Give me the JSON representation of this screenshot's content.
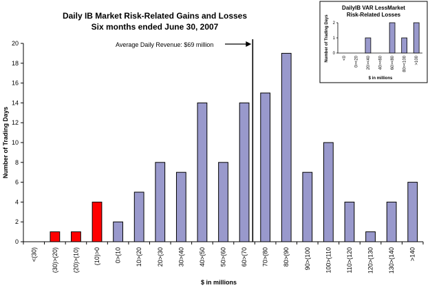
{
  "chart_data": [
    {
      "type": "bar",
      "title": "Daily IB Market Risk-Related Gains and Losses",
      "subtitle": "Six months ended June 30, 2007",
      "xlabel": "$ in millions",
      "ylabel": "Number of Trading Days",
      "ylim": [
        0,
        20
      ],
      "yticks": [
        0,
        2,
        4,
        6,
        8,
        10,
        12,
        14,
        16,
        18,
        20
      ],
      "grid": false,
      "categories": [
        "<(30)",
        "(30)>(20)",
        "(20)>(10)",
        "(10)>0",
        "0>(10",
        "10>(20",
        "20>(30",
        "30>(40",
        "40>(50",
        "50>(60",
        "60>(70",
        "70>(80",
        "80>(90",
        "90>(100",
        "100>(110",
        "110>(120",
        "120>(130",
        "130>(140",
        ">140"
      ],
      "values": [
        0,
        1,
        1,
        4,
        2,
        5,
        8,
        7,
        14,
        8,
        14,
        15,
        19,
        7,
        10,
        4,
        1,
        4,
        6
      ],
      "bar_colors": [
        "#ff0000",
        "#ff0000",
        "#ff0000",
        "#ff0000",
        "#9999cc",
        "#9999cc",
        "#9999cc",
        "#9999cc",
        "#9999cc",
        "#9999cc",
        "#9999cc",
        "#9999cc",
        "#9999cc",
        "#9999cc",
        "#9999cc",
        "#9999cc",
        "#9999cc",
        "#9999cc",
        "#9999cc"
      ],
      "annotation": {
        "text": "Average Daily Revenue: $69 million",
        "x_value": 69
      }
    },
    {
      "type": "bar",
      "title": "DailyIB VAR LessMarket Risk-Related Losses",
      "xlabel": "$ in millions",
      "ylabel": "Number of Trading Days",
      "ylim": [
        0,
        2
      ],
      "yticks": [
        0,
        1,
        2
      ],
      "categories": [
        "<0",
        "0><20",
        "20><40",
        "40><60",
        "60><80",
        "80><100",
        ">100"
      ],
      "values": [
        0,
        0,
        1,
        0,
        2,
        1,
        2
      ],
      "bar_color": "#9999cc"
    }
  ]
}
